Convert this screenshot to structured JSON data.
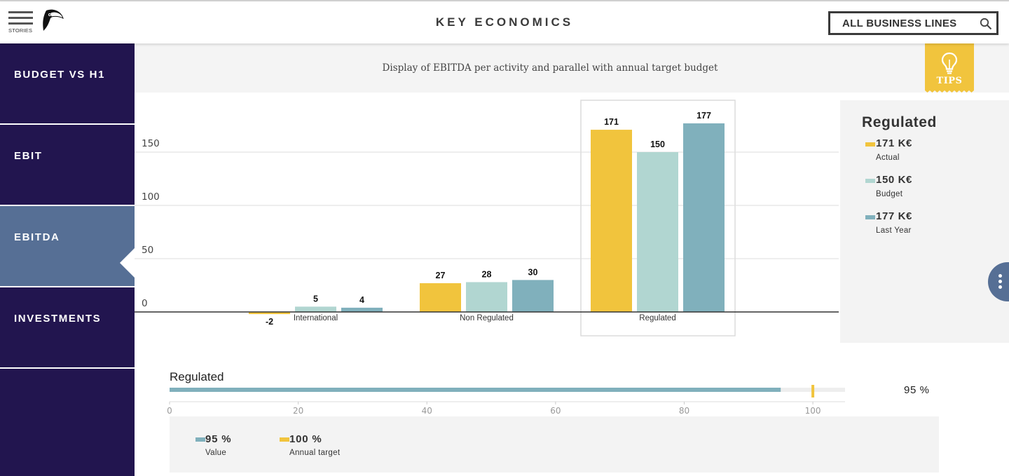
{
  "header": {
    "menu_label": "STORIES",
    "title": "KEY ECONOMICS",
    "business_line": "ALL BUSINESS LINES"
  },
  "sidebar": {
    "items": [
      {
        "label": "BUDGET VS H1",
        "active": false
      },
      {
        "label": "EBIT",
        "active": false
      },
      {
        "label": "EBITDA",
        "active": true
      },
      {
        "label": "INVESTMENTS",
        "active": false
      }
    ]
  },
  "description": "Display of EBITDA per activity and parallel with annual target budget",
  "tips_label": "TIPS",
  "colors": {
    "actual": "#f1c43d",
    "budget": "#b1d6d1",
    "last_year": "#80b0bc",
    "sidebar": "#22154f",
    "sidebar_active": "#566f95"
  },
  "chart_data": {
    "type": "bar",
    "categories": [
      "International",
      "Non Regulated",
      "Regulated"
    ],
    "series": [
      {
        "name": "Actual",
        "values": [
          -2,
          27,
          171
        ]
      },
      {
        "name": "Budget",
        "values": [
          5,
          28,
          150
        ]
      },
      {
        "name": "Last Year",
        "values": [
          4,
          30,
          177
        ]
      }
    ],
    "y_ticks": [
      0,
      50,
      100,
      150
    ],
    "ylim": [
      -5,
      190
    ],
    "grid": true,
    "selected_category": "Regulated"
  },
  "legend_panel": {
    "title": "Regulated",
    "items": [
      {
        "value": "171 K€",
        "label": "Actual",
        "color": "#f1c43d"
      },
      {
        "value": "150 K€",
        "label": "Budget",
        "color": "#b1d6d1"
      },
      {
        "value": "177 K€",
        "label": "Last Year",
        "color": "#80b0bc"
      }
    ]
  },
  "progress": {
    "title": "Regulated",
    "value": 95,
    "target": 100,
    "percent_label": "95 %",
    "axis_ticks": [
      0,
      20,
      40,
      60,
      80,
      100
    ],
    "legend": [
      {
        "value": "95 %",
        "label": "Value",
        "color": "#80b0bc"
      },
      {
        "value": "100 %",
        "label": "Annual target",
        "color": "#f1c43d"
      }
    ]
  }
}
